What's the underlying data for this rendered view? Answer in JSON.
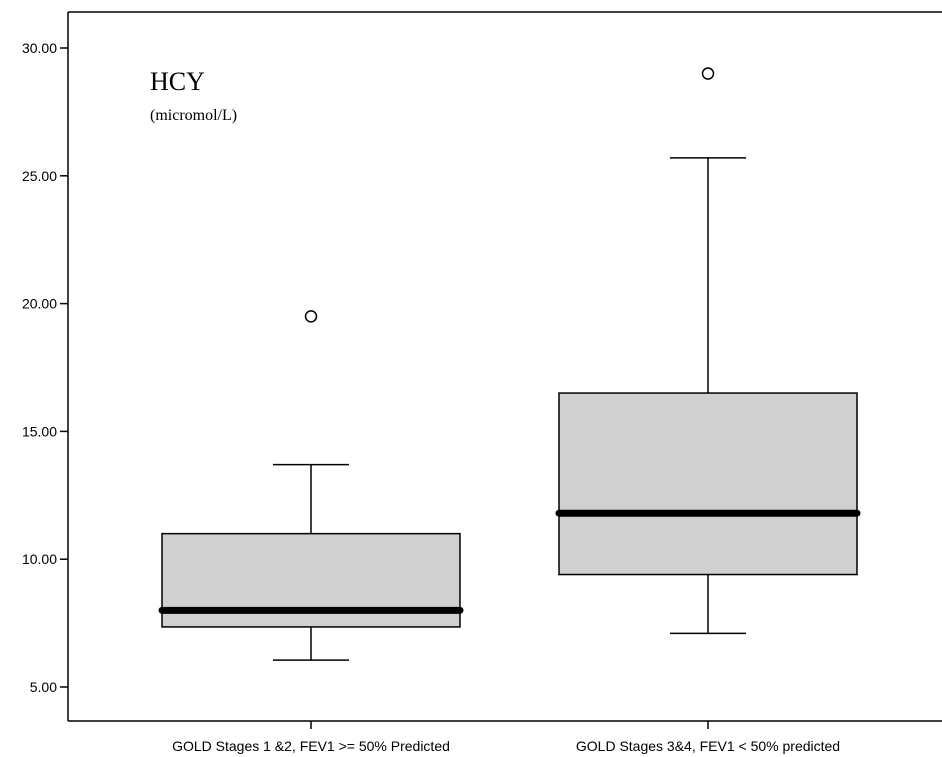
{
  "chart_data": {
    "type": "box",
    "title": "HCY",
    "subtitle": "(micromol/L)",
    "xlabel": "",
    "ylabel": "",
    "ylim": [
      4.0,
      31.5
    ],
    "yticks": [
      "5.00",
      "10.00",
      "15.00",
      "20.00",
      "25.00",
      "30.00"
    ],
    "ytick_values": [
      5,
      10,
      15,
      20,
      25,
      30
    ],
    "grid": false,
    "categories": [
      "GOLD Stages 1 &2, FEV1 >= 50% Predicted",
      "GOLD Stages 3&4, FEV1 < 50% predicted"
    ],
    "boxes": [
      {
        "whisker_low": 6.05,
        "q1": 7.35,
        "median": 8.0,
        "q3": 11.0,
        "whisker_high": 13.7,
        "outliers": [
          19.5
        ]
      },
      {
        "whisker_low": 7.1,
        "q1": 9.4,
        "median": 11.8,
        "q3": 16.5,
        "whisker_high": 25.7,
        "outliers": [
          29.0
        ]
      }
    ],
    "colors": {
      "box_fill": "#d0d0d0",
      "stroke": "#000000",
      "median": "#000000"
    }
  }
}
